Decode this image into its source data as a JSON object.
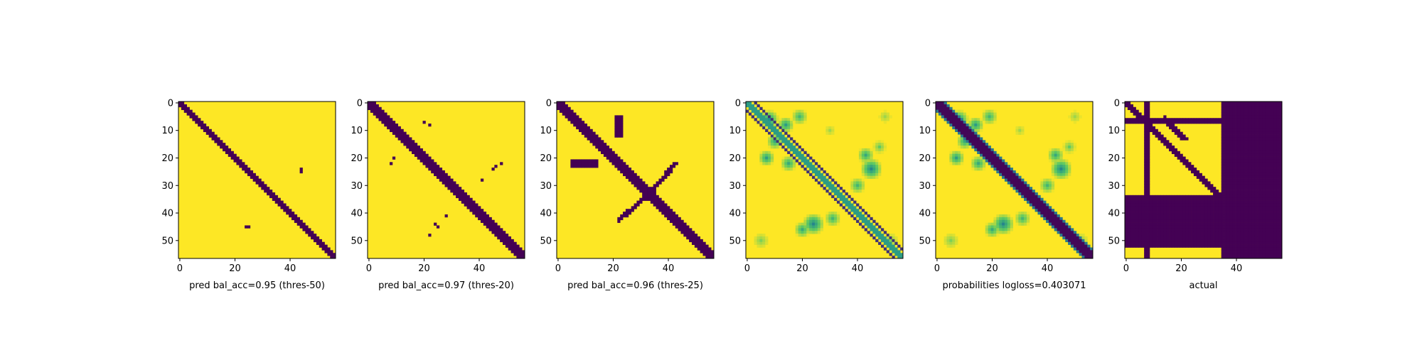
{
  "figure": {
    "n_rows": 57,
    "n_cols": 57,
    "xticks": [
      0,
      20,
      40
    ],
    "yticks": [
      0,
      10,
      20,
      30,
      40,
      50
    ],
    "colors": {
      "dark": "#440154",
      "bright": "#fde725",
      "mid_green": "#21a785",
      "teal": "#2a788e",
      "light_green": "#b5de2b",
      "axis": "#000000"
    },
    "panels": [
      {
        "xlabel": "pred bal_acc=0.95 (thres-50)"
      },
      {
        "xlabel": "pred bal_acc=0.97 (thres-20)"
      },
      {
        "xlabel": "pred bal_acc=0.96 (thres-25)"
      },
      {
        "xlabel": ""
      },
      {
        "xlabel": "probabilities logloss=0.403071"
      },
      {
        "xlabel": "actual"
      }
    ]
  },
  "chart_data": [
    {
      "type": "heatmap",
      "xlabel": "pred bal_acc=0.95 (thres-50)",
      "xlim": [
        0,
        56
      ],
      "ylim": [
        56,
        0
      ],
      "xticks": [
        0,
        20,
        40
      ],
      "yticks": [
        0,
        10,
        20,
        30,
        40,
        50
      ],
      "values_binary": true,
      "diagonal_band": {
        "half_width": 1.5,
        "value": 0
      },
      "blobs_value0": [
        [
          44,
          24,
          0.8
        ],
        [
          24,
          45,
          0.8
        ]
      ],
      "background_value": 1
    },
    {
      "type": "heatmap",
      "xlabel": "pred bal_acc=0.97 (thres-20)",
      "xlim": [
        0,
        56
      ],
      "ylim": [
        56,
        0
      ],
      "xticks": [
        0,
        20,
        40
      ],
      "yticks": [
        0,
        10,
        20,
        30,
        40,
        50
      ],
      "values_binary": true,
      "diagonal_band": {
        "half_width": 2.0,
        "value": 0
      },
      "blobs_value0": [
        [
          20,
          7,
          0.6
        ],
        [
          23,
          8,
          0.6
        ],
        [
          9,
          20,
          0.7
        ],
        [
          8,
          23,
          0.6
        ],
        [
          45,
          24,
          0.9
        ],
        [
          24,
          44,
          0.8
        ],
        [
          42,
          29,
          0.5
        ],
        [
          29,
          42,
          0.5
        ]
      ],
      "background_value": 1
    },
    {
      "type": "heatmap",
      "xlabel": "pred bal_acc=0.96 (thres-25)",
      "xlim": [
        0,
        56
      ],
      "ylim": [
        56,
        0
      ],
      "xticks": [
        0,
        20,
        40
      ],
      "yticks": [
        0,
        10,
        20,
        30,
        40,
        50
      ],
      "values_binary": true,
      "diagonal_band": {
        "half_width": 2.0,
        "value": 0
      },
      "background_value": 1
    },
    {
      "type": "heatmap",
      "xlabel": "",
      "xlim": [
        0,
        56
      ],
      "ylim": [
        56,
        0
      ],
      "xticks": [
        0,
        20,
        40
      ],
      "yticks": [
        0,
        10,
        20,
        30,
        40,
        50
      ],
      "description_values": "continuous probabilities; two thin diagonal lines offset from main diagonal",
      "offset_lines": [
        3,
        -3
      ]
    },
    {
      "type": "heatmap",
      "xlabel": "probabilities logloss=0.403071",
      "xlim": [
        0,
        56
      ],
      "ylim": [
        56,
        0
      ],
      "xticks": [
        0,
        20,
        40
      ],
      "yticks": [
        0,
        10,
        20,
        30,
        40,
        50
      ],
      "diagonal_band": {
        "half_width": 2.5,
        "value": 0
      }
    },
    {
      "type": "heatmap",
      "xlabel": "actual",
      "xlim": [
        0,
        56
      ],
      "ylim": [
        56,
        0
      ],
      "xticks": [
        0,
        20,
        40
      ],
      "yticks": [
        0,
        10,
        20,
        30,
        40,
        50
      ],
      "values_binary": true,
      "dark_cols": [
        [
          35,
          56
        ],
        [
          7,
          8
        ]
      ],
      "dark_rows": [
        [
          34,
          52
        ],
        [
          6,
          7
        ]
      ],
      "diagonal_band": {
        "half_width": 1.5,
        "value": 0
      }
    }
  ]
}
